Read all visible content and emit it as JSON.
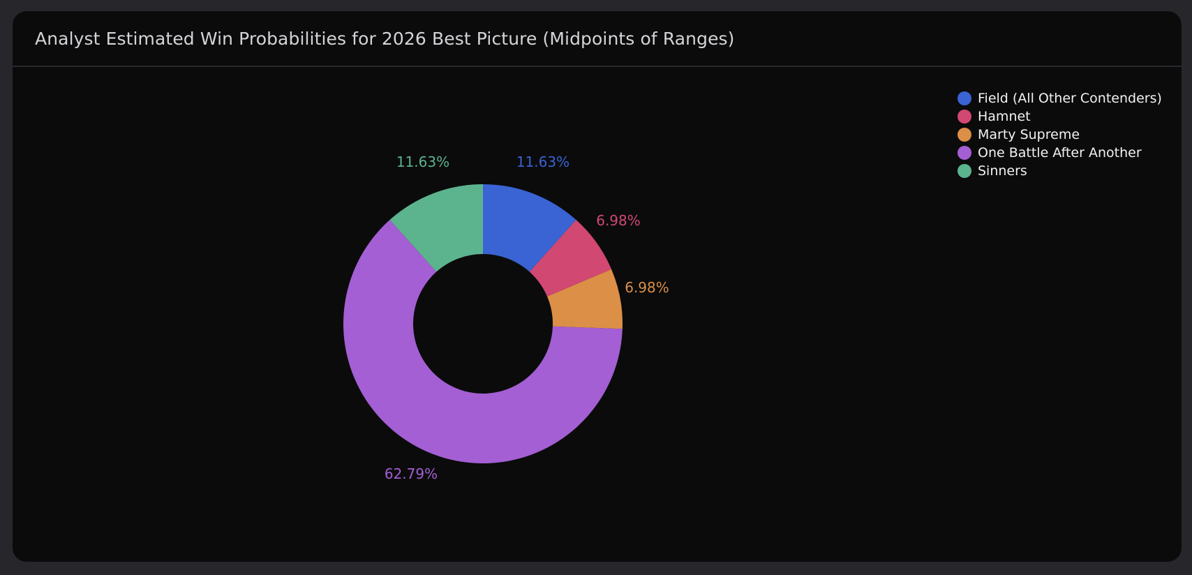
{
  "header": {
    "title": "Analyst Estimated Win Probabilities for 2026 Best Picture (Midpoints of Ranges)"
  },
  "legend": {
    "items": [
      {
        "label": "Field (All Other Contenders)",
        "color": "#3a63d3"
      },
      {
        "label": "Hamnet",
        "color": "#d14872"
      },
      {
        "label": "Marty Supreme",
        "color": "#dc8f47"
      },
      {
        "label": "One Battle After Another",
        "color": "#a45fd4"
      },
      {
        "label": "Sinners",
        "color": "#5cb48f"
      }
    ]
  },
  "labels": {
    "field": "11.63%",
    "hamnet": "6.98%",
    "marty": "6.98%",
    "obaa": "62.79%",
    "sinners": "11.63%"
  },
  "chart_data": {
    "type": "pie",
    "variant": "donut",
    "title": "Analyst Estimated Win Probabilities for 2026 Best Picture (Midpoints of Ranges)",
    "categories": [
      "Field (All Other Contenders)",
      "Hamnet",
      "Marty Supreme",
      "One Battle After Another",
      "Sinners"
    ],
    "values": [
      11.63,
      6.98,
      6.98,
      62.79,
      11.63
    ],
    "colors": [
      "#3a63d3",
      "#d14872",
      "#dc8f47",
      "#a45fd4",
      "#5cb48f"
    ],
    "value_format": "percent",
    "legend_position": "top-right"
  }
}
